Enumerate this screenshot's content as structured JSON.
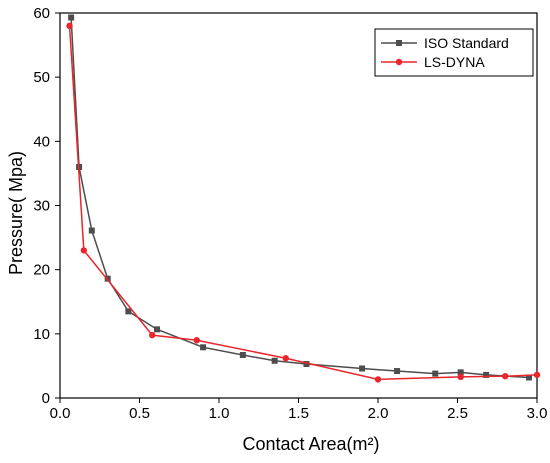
{
  "chart_data": {
    "type": "line",
    "title": "",
    "xlabel": "Contact Area(m²)",
    "ylabel": "Pressure( Mpa)",
    "xlim": [
      0.0,
      3.0
    ],
    "ylim": [
      0,
      60
    ],
    "x_ticks": [
      0.0,
      0.5,
      1.0,
      1.5,
      2.0,
      2.5,
      3.0
    ],
    "x_tick_labels": [
      "0.0",
      "0.5",
      "1.0",
      "1.5",
      "2.0",
      "2.5",
      "3.0"
    ],
    "y_ticks": [
      0,
      10,
      20,
      30,
      40,
      50,
      60
    ],
    "y_tick_labels": [
      "0",
      "10",
      "20",
      "30",
      "40",
      "50",
      "60"
    ],
    "grid": false,
    "legend_position": "top-right",
    "series": [
      {
        "name": "ISO Standard",
        "color": "#4d4d4d",
        "marker": "square",
        "x": [
          0.07,
          0.12,
          0.2,
          0.3,
          0.43,
          0.61,
          0.9,
          1.15,
          1.35,
          1.55,
          1.9,
          2.12,
          2.36,
          2.52,
          2.68,
          2.95
        ],
        "y": [
          59.3,
          36.0,
          26.1,
          18.6,
          13.5,
          10.7,
          7.9,
          6.7,
          5.8,
          5.3,
          4.6,
          4.2,
          3.8,
          4.0,
          3.6,
          3.2
        ]
      },
      {
        "name": "LS-DYNA",
        "color": "#e8262b",
        "marker": "circle",
        "x": [
          0.06,
          0.15,
          0.58,
          0.86,
          1.42,
          2.0,
          2.52,
          2.8,
          3.0
        ],
        "y": [
          58.0,
          23.0,
          9.8,
          9.0,
          6.2,
          2.9,
          3.3,
          3.4,
          3.6
        ]
      }
    ]
  }
}
